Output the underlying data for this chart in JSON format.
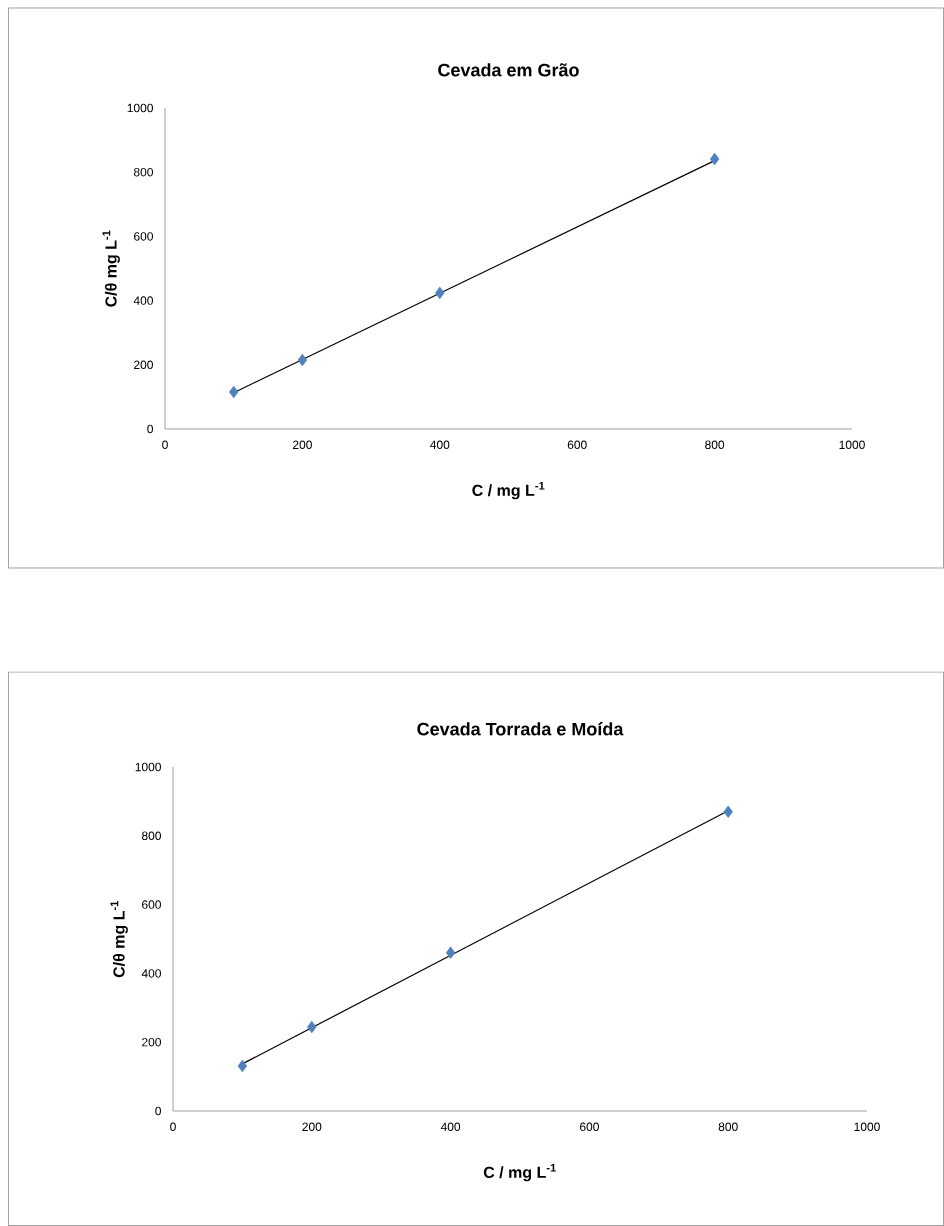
{
  "chart_data": [
    {
      "type": "scatter",
      "title": "Cevada em Grão",
      "xlabel": "C / mg L$^{-1}$",
      "ylabel": "C/θ  mg L$^{-1}$",
      "xlim": [
        0,
        1000
      ],
      "ylim": [
        0,
        1000
      ],
      "xticks": [
        0,
        200,
        400,
        600,
        800,
        1000
      ],
      "yticks": [
        0,
        200,
        400,
        600,
        800,
        1000
      ],
      "grid": false,
      "marker": "diamond",
      "series": [
        {
          "color": "#4f81bd",
          "x": [
            100,
            200,
            400,
            800
          ],
          "values": [
            115,
            215,
            424,
            841
          ]
        },
        {
          "type": "line",
          "color": "#000000",
          "marker": "none",
          "x": [
            100,
            800
          ],
          "values": [
            113,
            836
          ]
        }
      ]
    },
    {
      "type": "scatter",
      "title": "Cevada Torrada e Moída",
      "xlabel": "C / mg L$^{-1}$",
      "ylabel": "C/θ  mg L$^{-1}$",
      "xlim": [
        0,
        1000
      ],
      "ylim": [
        0,
        1000
      ],
      "xticks": [
        0,
        200,
        400,
        600,
        800,
        1000
      ],
      "yticks": [
        0,
        200,
        400,
        600,
        800,
        1000
      ],
      "grid": false,
      "marker": "diamond",
      "series": [
        {
          "color": "#4f81bd",
          "x": [
            100,
            200,
            400,
            800
          ],
          "values": [
            131,
            244,
            460,
            870
          ]
        },
        {
          "type": "line",
          "color": "#000000",
          "marker": "none",
          "x": [
            100,
            800
          ],
          "values": [
            137,
            873
          ]
        }
      ]
    }
  ]
}
